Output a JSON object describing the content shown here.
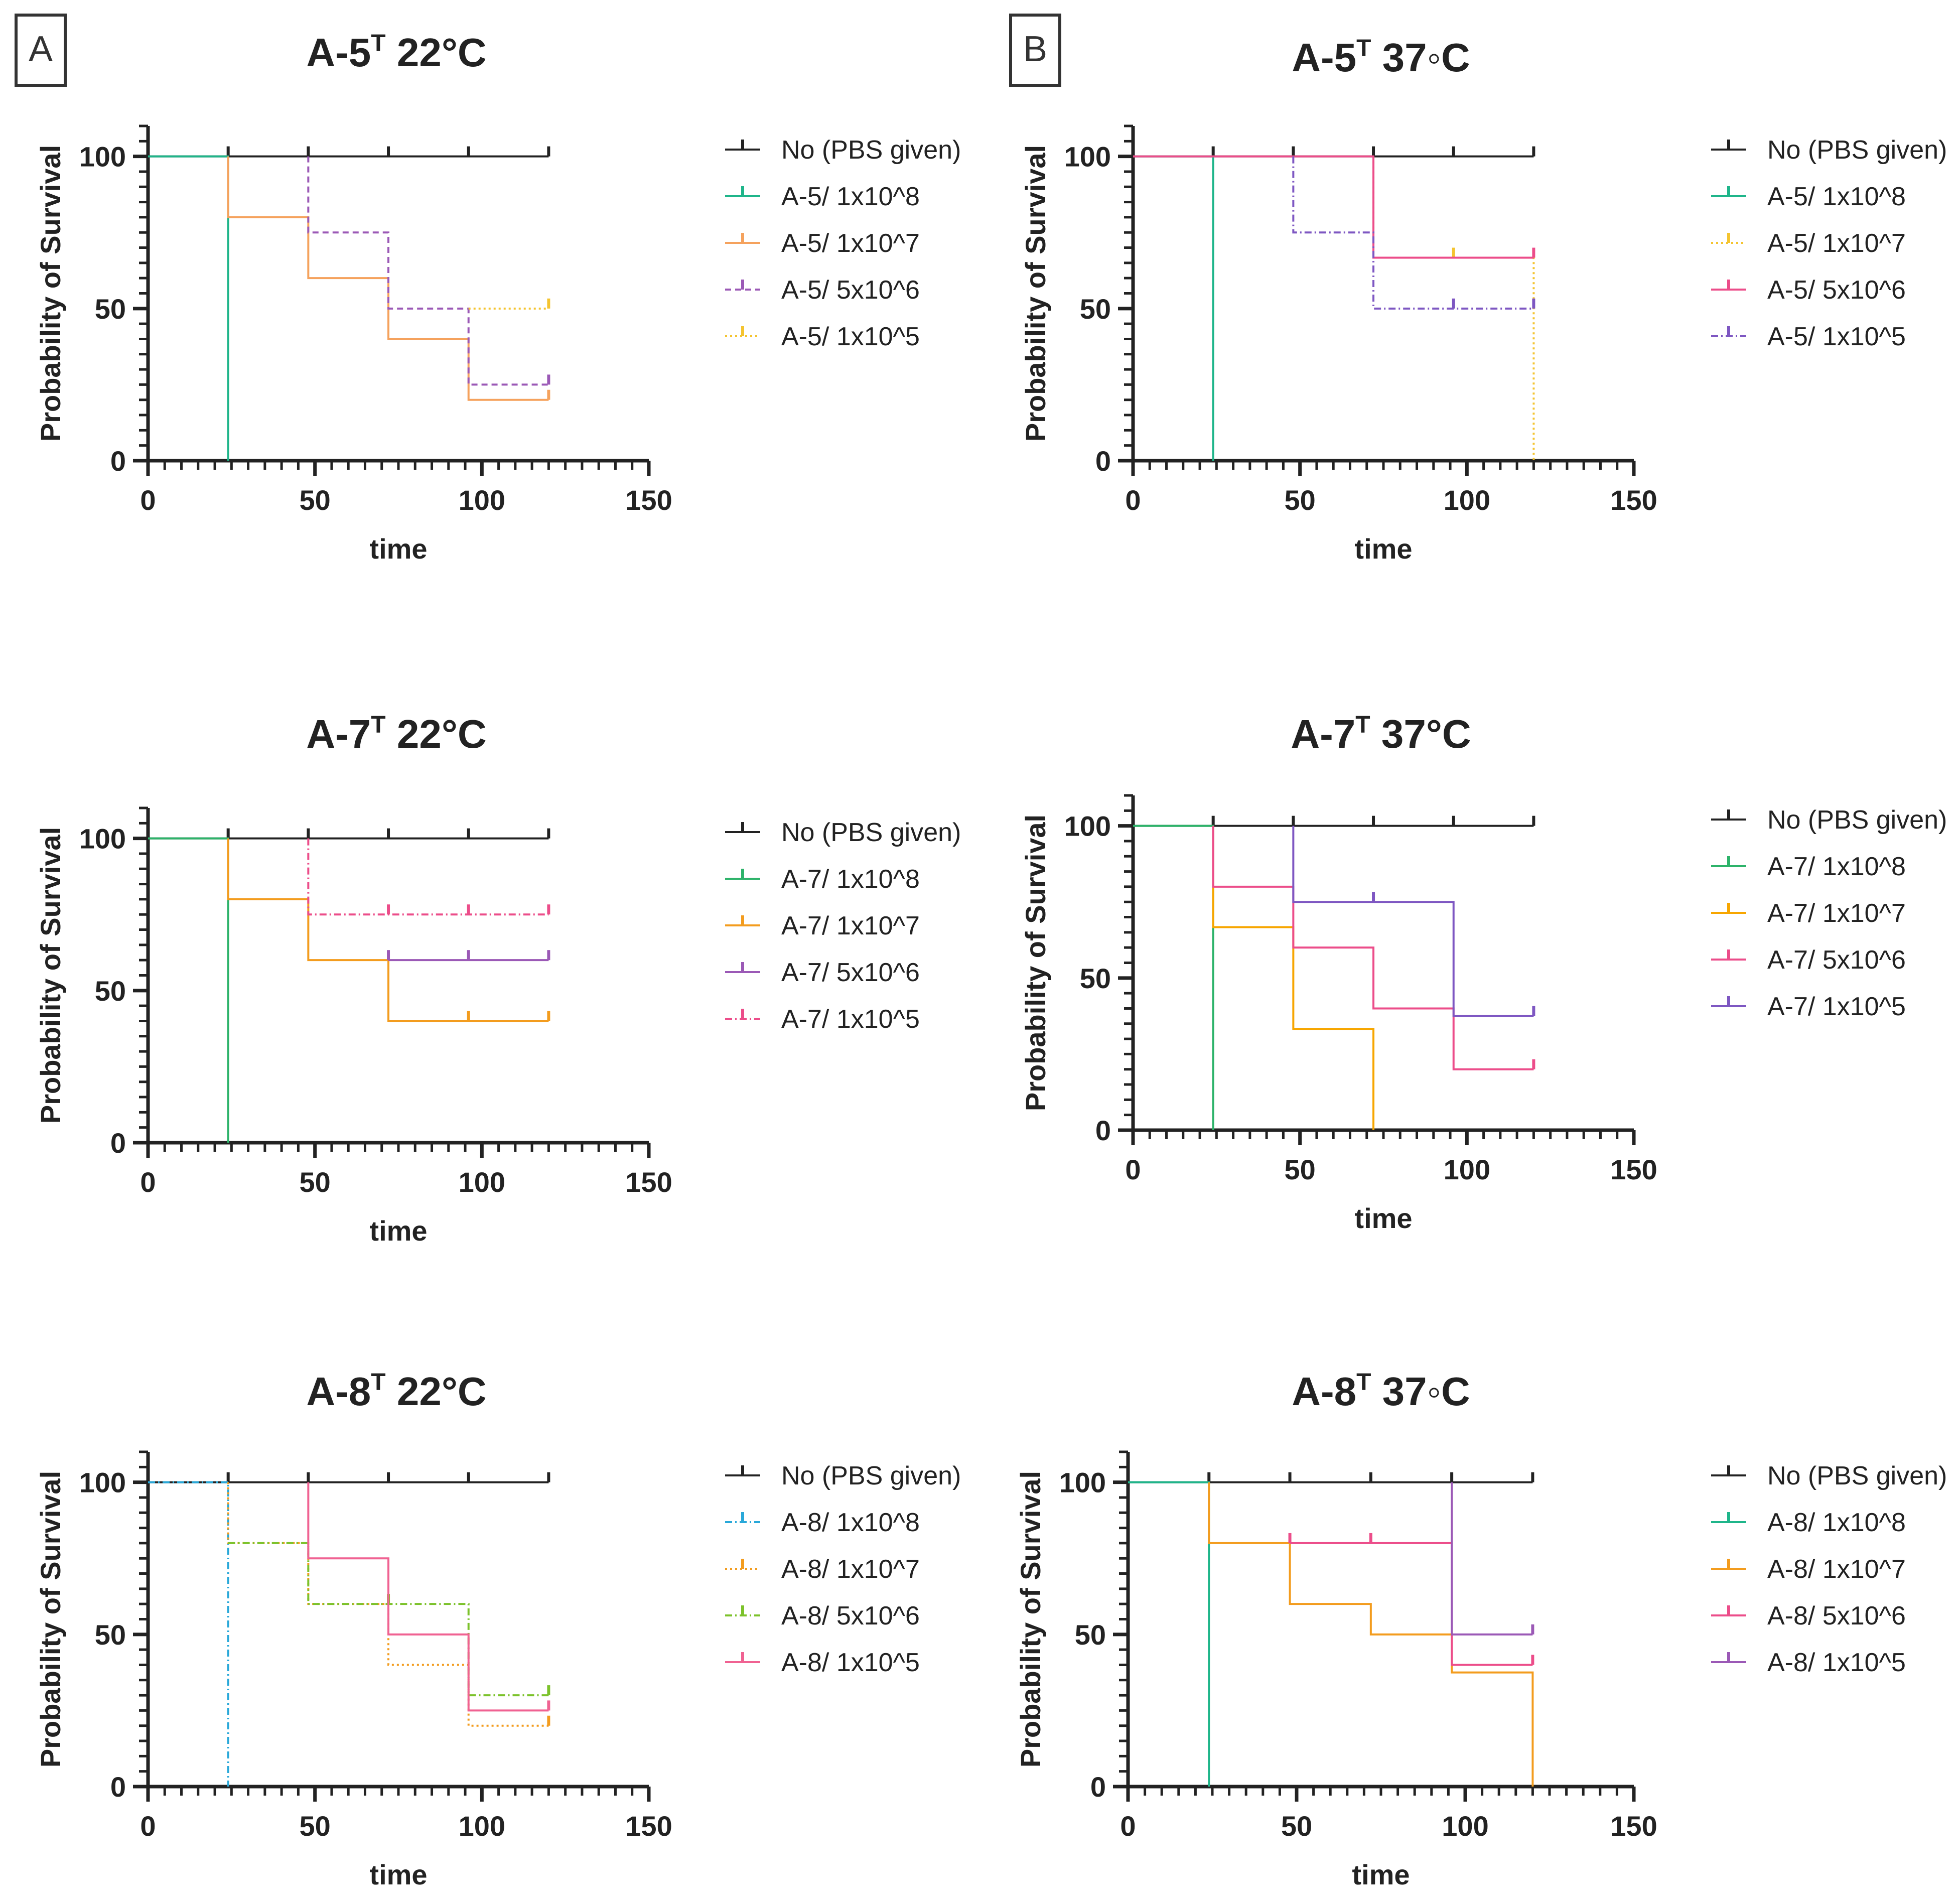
{
  "panels": [
    {
      "letter": "A"
    },
    {
      "letter": "B"
    }
  ],
  "colors": {
    "black": "#222222",
    "green": "#1fb58a",
    "green2": "#2db36a",
    "orange": "#f5a25d",
    "orange2": "#f39c1e",
    "purple": "#9b59b6",
    "purple2": "#7e57c2",
    "yellow": "#f4c430",
    "pink": "#ec4d8a",
    "pink2": "#f06292",
    "cyan": "#29a8d9",
    "lime": "#7cc22b",
    "amber": "#f7a600"
  },
  "chart_data": [
    {
      "type": "line",
      "title": "A-5",
      "title_sup": "T",
      "title_suffix": " 22°C",
      "xlabel": "time",
      "ylabel": "Probability of Survival",
      "xlim": [
        0,
        150
      ],
      "ylim": [
        0,
        110
      ],
      "xticks": [
        0,
        50,
        100,
        150
      ],
      "yticks": [
        0,
        50,
        100
      ],
      "tick_labels_x": [
        "0",
        "50",
        "100",
        "150"
      ],
      "tick_labels_y": [
        "0",
        "50",
        "100"
      ],
      "legend": "right",
      "series": [
        {
          "name": "No (PBS given)",
          "color": "#222222",
          "dash": "",
          "x": [
            0,
            120
          ],
          "y": [
            100,
            100
          ],
          "censor": [
            [
              24,
              100
            ],
            [
              48,
              100
            ],
            [
              72,
              100
            ],
            [
              96,
              100
            ],
            [
              120,
              100
            ]
          ]
        },
        {
          "name": "A-5/ 1x10^8",
          "color": "#1fb58a",
          "dash": "",
          "x": [
            0,
            24,
            24
          ],
          "y": [
            100,
            100,
            0
          ],
          "censor": []
        },
        {
          "name": "A-5/ 1x10^7",
          "color": "#f5a25d",
          "dash": "",
          "x": [
            24,
            24,
            48,
            48,
            72,
            72,
            96,
            96,
            120
          ],
          "y": [
            100,
            80,
            80,
            60,
            60,
            40,
            40,
            20,
            20
          ],
          "censor": [
            [
              120,
              20
            ]
          ]
        },
        {
          "name": "A-5/ 5x10^6",
          "color": "#9b59b6",
          "dash": "12,8",
          "x": [
            48,
            48,
            72,
            72,
            96,
            96,
            120
          ],
          "y": [
            100,
            75,
            75,
            50,
            50,
            25,
            25
          ],
          "censor": [
            [
              120,
              25
            ]
          ]
        },
        {
          "name": "A-5/ 1x10^5",
          "color": "#f4c430",
          "dash": "4,6",
          "x": [
            96,
            120
          ],
          "y": [
            50,
            50
          ],
          "censor": [
            [
              120,
              50
            ]
          ]
        }
      ]
    },
    {
      "type": "line",
      "title": "A-5",
      "title_sup": "T",
      "title_suffix": " 37◦C",
      "xlabel": "time",
      "ylabel": "Probability of Survival",
      "xlim": [
        0,
        150
      ],
      "ylim": [
        0,
        110
      ],
      "xticks": [
        0,
        50,
        100,
        150
      ],
      "yticks": [
        0,
        50,
        100
      ],
      "tick_labels_x": [
        "0",
        "50",
        "100",
        "150"
      ],
      "tick_labels_y": [
        "0",
        "50",
        "100"
      ],
      "legend": "right",
      "series": [
        {
          "name": "No (PBS given)",
          "color": "#222222",
          "dash": "",
          "x": [
            0,
            120
          ],
          "y": [
            100,
            100
          ],
          "censor": [
            [
              24,
              100
            ],
            [
              48,
              100
            ],
            [
              72,
              100
            ],
            [
              96,
              100
            ],
            [
              120,
              100
            ]
          ]
        },
        {
          "name": "A-5/ 1x10^8",
          "color": "#1fb58a",
          "dash": "",
          "x": [
            0,
            24,
            24
          ],
          "y": [
            100,
            100,
            0
          ],
          "censor": []
        },
        {
          "name": "A-5/ 1x10^7",
          "color": "#f4c430",
          "dash": "4,6",
          "x": [
            72,
            72,
            120,
            120
          ],
          "y": [
            100,
            66.7,
            66.7,
            0
          ],
          "censor": [
            [
              96,
              66.7
            ]
          ]
        },
        {
          "name": "A-5/ 5x10^6",
          "color": "#ec4d8a",
          "dash": "",
          "x": [
            0,
            72,
            72,
            120
          ],
          "y": [
            100,
            100,
            66.7,
            66.7
          ],
          "censor": [
            [
              120,
              66.7
            ]
          ]
        },
        {
          "name": "A-5/ 1x10^5",
          "color": "#7e57c2",
          "dash": "14,6,3,6",
          "x": [
            48,
            48,
            72,
            72,
            120
          ],
          "y": [
            100,
            75,
            75,
            50,
            50
          ],
          "censor": [
            [
              96,
              50
            ],
            [
              120,
              50
            ]
          ]
        }
      ]
    },
    {
      "type": "line",
      "title": "A-7",
      "title_sup": "T",
      "title_suffix": " 22°C",
      "xlabel": "time",
      "ylabel": "Probability of Survival",
      "xlim": [
        0,
        150
      ],
      "ylim": [
        0,
        110
      ],
      "xticks": [
        0,
        50,
        100,
        150
      ],
      "yticks": [
        0,
        50,
        100
      ],
      "tick_labels_x": [
        "0",
        "50",
        "100",
        "150"
      ],
      "tick_labels_y": [
        "0",
        "50",
        "100"
      ],
      "legend": "right",
      "series": [
        {
          "name": "No (PBS given)",
          "color": "#222222",
          "dash": "",
          "x": [
            0,
            120
          ],
          "y": [
            100,
            100
          ],
          "censor": [
            [
              24,
              100
            ],
            [
              48,
              100
            ],
            [
              72,
              100
            ],
            [
              96,
              100
            ],
            [
              120,
              100
            ]
          ]
        },
        {
          "name": "A-7/ 1x10^8",
          "color": "#2db36a",
          "dash": "",
          "x": [
            0,
            24,
            24
          ],
          "y": [
            100,
            100,
            0
          ],
          "censor": []
        },
        {
          "name": "A-7/ 1x10^7",
          "color": "#f39c1e",
          "dash": "",
          "x": [
            24,
            24,
            48,
            48,
            72,
            72,
            120
          ],
          "y": [
            100,
            80,
            80,
            60,
            60,
            40,
            40
          ],
          "censor": [
            [
              96,
              40
            ],
            [
              120,
              40
            ]
          ]
        },
        {
          "name": "A-7/ 5x10^6",
          "color": "#9b59b6",
          "dash": "",
          "x": [
            72,
            120
          ],
          "y": [
            60,
            60
          ],
          "censor": [
            [
              72,
              60
            ],
            [
              96,
              60
            ],
            [
              120,
              60
            ]
          ]
        },
        {
          "name": "A-7/ 1x10^5",
          "color": "#ec4d8a",
          "dash": "14,6,3,6",
          "x": [
            48,
            48,
            120
          ],
          "y": [
            100,
            75,
            75
          ],
          "censor": [
            [
              72,
              75
            ],
            [
              96,
              75
            ],
            [
              120,
              75
            ]
          ]
        }
      ]
    },
    {
      "type": "line",
      "title": "A-7",
      "title_sup": "T",
      "title_suffix": " 37°C",
      "xlabel": "time",
      "ylabel": "Probability of Survival",
      "xlim": [
        0,
        150
      ],
      "ylim": [
        0,
        110
      ],
      "xticks": [
        0,
        50,
        100,
        150
      ],
      "yticks": [
        0,
        50,
        100
      ],
      "tick_labels_x": [
        "0",
        "50",
        "100",
        "150"
      ],
      "tick_labels_y": [
        "0",
        "50",
        "100"
      ],
      "legend": "right",
      "series": [
        {
          "name": "No (PBS given)",
          "color": "#222222",
          "dash": "",
          "x": [
            0,
            120
          ],
          "y": [
            100,
            100
          ],
          "censor": [
            [
              24,
              100
            ],
            [
              48,
              100
            ],
            [
              72,
              100
            ],
            [
              96,
              100
            ],
            [
              120,
              100
            ]
          ]
        },
        {
          "name": "A-7/ 1x10^8",
          "color": "#2db36a",
          "dash": "",
          "x": [
            0,
            24,
            24
          ],
          "y": [
            100,
            100,
            0
          ],
          "censor": []
        },
        {
          "name": "A-7/ 1x10^7",
          "color": "#f7a600",
          "dash": "",
          "x": [
            24,
            24,
            48,
            48,
            72,
            72
          ],
          "y": [
            100,
            66.7,
            66.7,
            33.3,
            33.3,
            0
          ],
          "censor": []
        },
        {
          "name": "A-7/ 5x10^6",
          "color": "#ec4d8a",
          "dash": "",
          "x": [
            24,
            24,
            48,
            48,
            72,
            72,
            96,
            96,
            120
          ],
          "y": [
            100,
            80,
            80,
            60,
            60,
            40,
            40,
            20,
            20
          ],
          "censor": [
            [
              120,
              20
            ]
          ]
        },
        {
          "name": "A-7/ 1x10^5",
          "color": "#7e57c2",
          "dash": "",
          "x": [
            48,
            48,
            96,
            96,
            120
          ],
          "y": [
            100,
            75,
            75,
            37.5,
            37.5
          ],
          "censor": [
            [
              72,
              75
            ],
            [
              120,
              37.5
            ]
          ]
        }
      ]
    },
    {
      "type": "line",
      "title": "A-8",
      "title_sup": "T",
      "title_suffix": " 22°C",
      "xlabel": "time",
      "ylabel": "Probability of Survival",
      "xlim": [
        0,
        150
      ],
      "ylim": [
        0,
        110
      ],
      "xticks": [
        0,
        50,
        100,
        150
      ],
      "yticks": [
        0,
        50,
        100
      ],
      "tick_labels_x": [
        "0",
        "50",
        "100",
        "150"
      ],
      "tick_labels_y": [
        "0",
        "50",
        "100"
      ],
      "legend": "right",
      "series": [
        {
          "name": "No (PBS given)",
          "color": "#222222",
          "dash": "",
          "x": [
            0,
            120
          ],
          "y": [
            100,
            100
          ],
          "censor": [
            [
              24,
              100
            ],
            [
              48,
              100
            ],
            [
              72,
              100
            ],
            [
              96,
              100
            ],
            [
              120,
              100
            ]
          ]
        },
        {
          "name": "A-8/ 1x10^8",
          "color": "#29a8d9",
          "dash": "14,6,3,6",
          "x": [
            0,
            24,
            24
          ],
          "y": [
            100,
            100,
            0
          ],
          "censor": []
        },
        {
          "name": "A-8/ 1x10^7",
          "color": "#f39c1e",
          "dash": "4,6",
          "x": [
            24,
            24,
            48,
            48,
            72,
            72,
            96,
            96,
            120
          ],
          "y": [
            100,
            80,
            80,
            60,
            60,
            40,
            40,
            20,
            20
          ],
          "censor": [
            [
              120,
              20
            ]
          ]
        },
        {
          "name": "A-8/ 5x10^6",
          "color": "#7cc22b",
          "dash": "14,6,3,6",
          "x": [
            24,
            48,
            48,
            96,
            96,
            120
          ],
          "y": [
            80,
            80,
            60,
            60,
            30,
            30
          ],
          "censor": [
            [
              72,
              60
            ],
            [
              120,
              30
            ]
          ]
        },
        {
          "name": "A-8/ 1x10^5",
          "color": "#f06292",
          "dash": "",
          "x": [
            48,
            48,
            72,
            72,
            96,
            96,
            120
          ],
          "y": [
            100,
            75,
            75,
            50,
            50,
            25,
            25
          ],
          "censor": [
            [
              120,
              25
            ]
          ]
        }
      ]
    },
    {
      "type": "line",
      "title": "A-8",
      "title_sup": "T",
      "title_suffix": " 37◦C",
      "xlabel": "time",
      "ylabel": "Probability of Survival",
      "xlim": [
        0,
        150
      ],
      "ylim": [
        0,
        110
      ],
      "xticks": [
        0,
        50,
        100,
        150
      ],
      "yticks": [
        0,
        50,
        100
      ],
      "tick_labels_x": [
        "0",
        "50",
        "100",
        "150"
      ],
      "tick_labels_y": [
        "0",
        "50",
        "100"
      ],
      "legend": "right",
      "series": [
        {
          "name": "No (PBS given)",
          "color": "#222222",
          "dash": "",
          "x": [
            0,
            120
          ],
          "y": [
            100,
            100
          ],
          "censor": [
            [
              24,
              100
            ],
            [
              48,
              100
            ],
            [
              72,
              100
            ],
            [
              96,
              100
            ],
            [
              120,
              100
            ]
          ]
        },
        {
          "name": "A-8/ 1x10^8",
          "color": "#1fb58a",
          "dash": "",
          "x": [
            0,
            24,
            24
          ],
          "y": [
            100,
            100,
            0
          ],
          "censor": []
        },
        {
          "name": "A-8/ 1x10^7",
          "color": "#f39c1e",
          "dash": "",
          "x": [
            24,
            24,
            48,
            48,
            72,
            72,
            96,
            96,
            120,
            120
          ],
          "y": [
            100,
            80,
            80,
            60,
            60,
            50,
            50,
            37.5,
            37.5,
            0
          ],
          "censor": []
        },
        {
          "name": "A-8/ 5x10^6",
          "color": "#ec4d8a",
          "dash": "",
          "x": [
            48,
            96,
            96,
            120
          ],
          "y": [
            80,
            80,
            40,
            40
          ],
          "censor": [
            [
              48,
              80
            ],
            [
              72,
              80
            ],
            [
              120,
              40
            ]
          ]
        },
        {
          "name": "A-8/ 1x10^5",
          "color": "#9b59b6",
          "dash": "",
          "x": [
            96,
            96,
            120
          ],
          "y": [
            100,
            50,
            50
          ],
          "censor": [
            [
              120,
              50
            ]
          ]
        }
      ]
    }
  ]
}
